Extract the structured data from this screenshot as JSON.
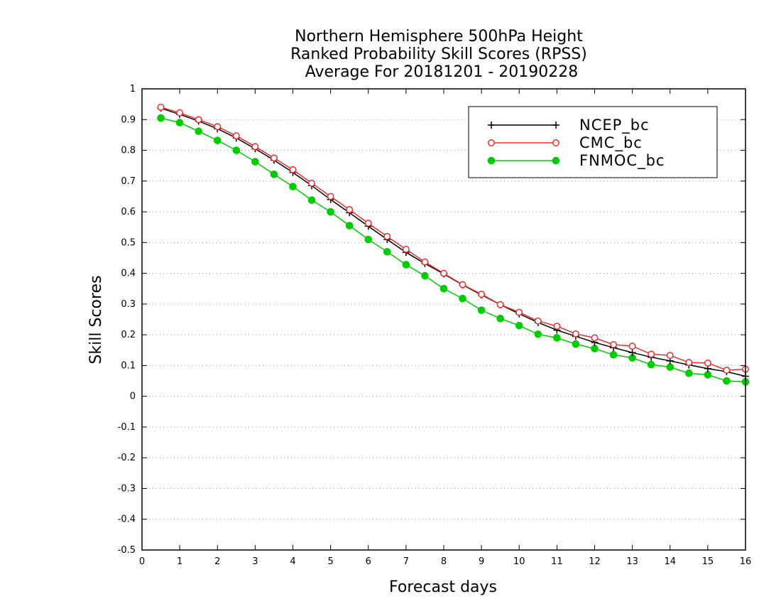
{
  "chart_data": {
    "type": "line",
    "title": [
      "Northern Hemisphere 500hPa Height",
      "Ranked Probability Skill Scores (RPSS)",
      "Average For 20181201 - 20190228"
    ],
    "xlabel": "Forecast days",
    "ylabel": "Skill Scores",
    "xlim": [
      0,
      16
    ],
    "ylim": [
      -0.5,
      1
    ],
    "xticks": [
      0,
      1,
      2,
      3,
      4,
      5,
      6,
      7,
      8,
      9,
      10,
      11,
      12,
      13,
      14,
      15,
      16
    ],
    "yticks": [
      -0.5,
      -0.4,
      -0.3,
      -0.2,
      -0.1,
      0,
      0.1,
      0.2,
      0.3,
      0.4,
      0.5,
      0.6,
      0.7,
      0.8,
      0.9,
      1
    ],
    "ytick_labels": [
      "-0.5",
      "-0.4",
      "-0.3",
      "-0.2",
      "-0.1",
      "0",
      "0.1",
      "0.2",
      "0.3",
      "0.4",
      "0.5",
      "0.6",
      "0.7",
      "0.8",
      "0.9",
      "1"
    ],
    "grid": "horizontal dotted",
    "legend_position": "top-right",
    "x": [
      0.5,
      1,
      1.5,
      2,
      2.5,
      3,
      3.5,
      4,
      4.5,
      5,
      5.5,
      6,
      6.5,
      7,
      7.5,
      8,
      8.5,
      9,
      9.5,
      10,
      10.5,
      11,
      11.5,
      12,
      12.5,
      13,
      13.5,
      14,
      14.5,
      15,
      15.5,
      16
    ],
    "series": [
      {
        "name": "NCEP_bc",
        "color": "#000000",
        "marker": "plus",
        "values": [
          0.937,
          0.917,
          0.895,
          0.87,
          0.84,
          0.805,
          0.768,
          0.728,
          0.685,
          0.64,
          0.597,
          0.553,
          0.51,
          0.468,
          0.432,
          0.398,
          0.362,
          0.33,
          0.298,
          0.268,
          0.24,
          0.215,
          0.195,
          0.175,
          0.158,
          0.142,
          0.127,
          0.115,
          0.102,
          0.09,
          0.08,
          0.065
        ]
      },
      {
        "name": "CMC_bc",
        "color": "#e53030",
        "marker": "open-circle",
        "values": [
          0.94,
          0.922,
          0.9,
          0.877,
          0.847,
          0.812,
          0.775,
          0.737,
          0.693,
          0.65,
          0.607,
          0.563,
          0.52,
          0.478,
          0.437,
          0.4,
          0.363,
          0.332,
          0.298,
          0.273,
          0.245,
          0.228,
          0.203,
          0.19,
          0.168,
          0.163,
          0.137,
          0.133,
          0.11,
          0.108,
          0.085,
          0.088
        ]
      },
      {
        "name": "FNMOC_bc",
        "color": "#00cc00",
        "marker": "filled-circle",
        "values": [
          0.905,
          0.89,
          0.862,
          0.832,
          0.8,
          0.763,
          0.722,
          0.682,
          0.638,
          0.6,
          0.555,
          0.51,
          0.47,
          0.428,
          0.392,
          0.35,
          0.318,
          0.28,
          0.253,
          0.23,
          0.202,
          0.19,
          0.17,
          0.155,
          0.135,
          0.125,
          0.103,
          0.095,
          0.075,
          0.07,
          0.05,
          0.047
        ]
      }
    ]
  }
}
